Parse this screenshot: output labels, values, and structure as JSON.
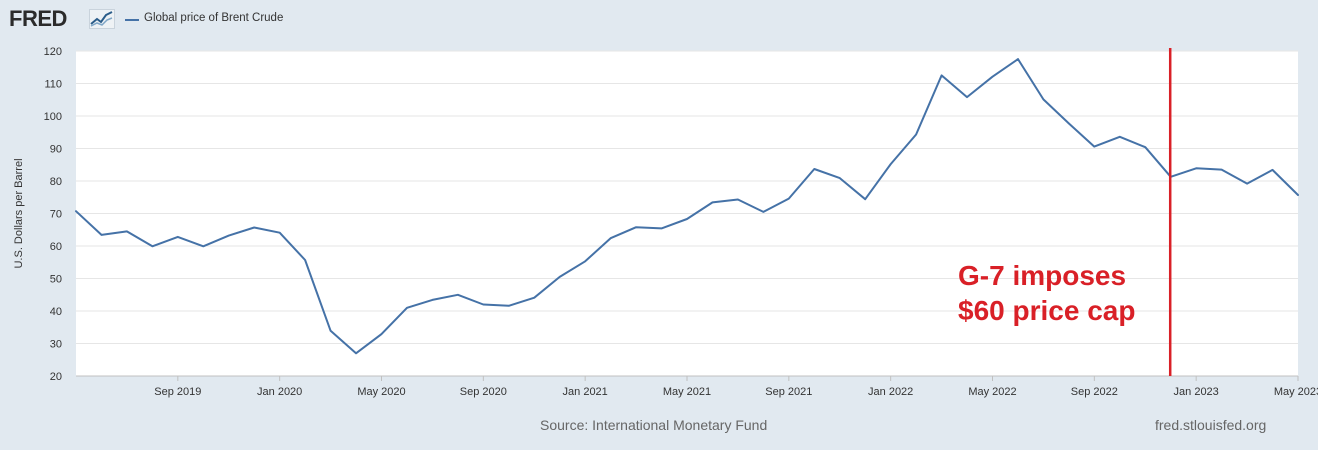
{
  "header": {
    "logo_text": "FRED",
    "legend_label": "Global price of Brent Crude",
    "series_color": "#4572a7"
  },
  "footer": {
    "source": "Source: International Monetary Fund",
    "site": "fred.stlouisfed.org"
  },
  "chart_data": {
    "type": "line",
    "ylabel": "U.S. Dollars per Barrel",
    "xlabel": "",
    "ylim": [
      20,
      120
    ],
    "yticks": [
      20,
      30,
      40,
      50,
      60,
      70,
      80,
      90,
      100,
      110,
      120
    ],
    "grid": true,
    "legend_position": "top-left",
    "x_tick_labels": [
      "Sep 2019",
      "Jan 2020",
      "May 2020",
      "Sep 2020",
      "Jan 2021",
      "May 2021",
      "Sep 2021",
      "Jan 2022",
      "May 2022",
      "Sep 2022",
      "Jan 2023",
      "May 2023"
    ],
    "x_tick_dates": [
      "2019-09",
      "2020-01",
      "2020-05",
      "2020-09",
      "2021-01",
      "2021-05",
      "2021-09",
      "2022-01",
      "2022-05",
      "2022-09",
      "2023-01",
      "2023-05"
    ],
    "series": [
      {
        "name": "Global price of Brent Crude",
        "color": "#4572a7",
        "x": [
          "2019-05",
          "2019-06",
          "2019-07",
          "2019-08",
          "2019-09",
          "2019-10",
          "2019-11",
          "2019-12",
          "2020-01",
          "2020-02",
          "2020-03",
          "2020-04",
          "2020-05",
          "2020-06",
          "2020-07",
          "2020-08",
          "2020-09",
          "2020-10",
          "2020-11",
          "2020-12",
          "2021-01",
          "2021-02",
          "2021-03",
          "2021-04",
          "2021-05",
          "2021-06",
          "2021-07",
          "2021-08",
          "2021-09",
          "2021-10",
          "2021-11",
          "2021-12",
          "2022-01",
          "2022-02",
          "2022-03",
          "2022-04",
          "2022-05",
          "2022-06",
          "2022-07",
          "2022-08",
          "2022-09",
          "2022-10",
          "2022-11",
          "2022-12",
          "2023-01",
          "2023-02",
          "2023-03",
          "2023-04",
          "2023-05"
        ],
        "values": [
          70.7,
          63.4,
          64.5,
          59.9,
          62.8,
          59.9,
          63.2,
          65.7,
          64.1,
          55.7,
          33.9,
          27.0,
          32.9,
          41.0,
          43.4,
          45.0,
          42.0,
          41.6,
          44.1,
          50.5,
          55.3,
          62.4,
          65.8,
          65.4,
          68.3,
          73.4,
          74.3,
          70.5,
          74.6,
          83.7,
          80.9,
          74.4,
          85.2,
          94.3,
          112.5,
          105.8,
          112.1,
          117.5,
          105.1,
          97.7,
          90.6,
          93.6,
          90.4,
          81.3,
          83.9,
          83.5,
          79.2,
          83.4,
          75.7
        ]
      }
    ],
    "annotations": [
      {
        "type": "vertical-line",
        "x": "2022-12",
        "color": "#d92027",
        "text_lines": [
          "G-7 imposes",
          "$60 price cap"
        ]
      }
    ]
  }
}
